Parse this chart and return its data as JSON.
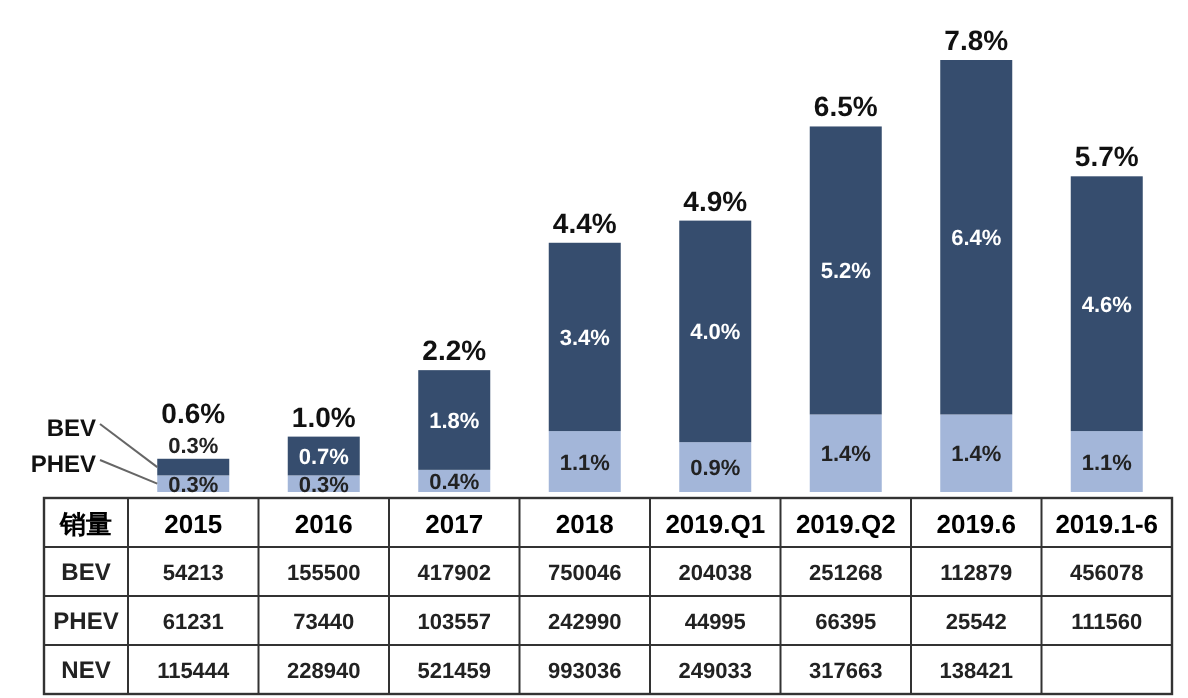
{
  "chart_data": {
    "type": "bar",
    "stacked": true,
    "categories": [
      "2015",
      "2016",
      "2017",
      "2018",
      "2019.Q1",
      "2019.Q2",
      "2019.6",
      "2019.1-6"
    ],
    "series": [
      {
        "name": "PHEV",
        "color": "#a3b6d9",
        "values": [
          0.3,
          0.3,
          0.4,
          1.1,
          0.9,
          1.4,
          1.4,
          1.1
        ],
        "value_labels": [
          "0.3%",
          "0.3%",
          "0.4%",
          "1.1%",
          "0.9%",
          "1.4%",
          "1.4%",
          "1.1%"
        ]
      },
      {
        "name": "BEV",
        "color": "#364d6e",
        "values": [
          0.3,
          0.7,
          1.8,
          3.4,
          4.0,
          5.2,
          6.4,
          4.6
        ],
        "value_labels": [
          "0.3%",
          "0.7%",
          "1.8%",
          "3.4%",
          "4.0%",
          "5.2%",
          "6.4%",
          "4.6%"
        ]
      }
    ],
    "totals": [
      "0.6%",
      "1.0%",
      "2.2%",
      "4.4%",
      "4.9%",
      "6.5%",
      "7.8%",
      "5.7%"
    ],
    "annotations": [
      "销量",
      "BEV",
      "54213",
      "155500",
      "417902",
      "750046",
      "204038",
      "251268",
      "112879",
      "456078",
      "PHEV",
      "61231",
      "73440",
      "103557",
      "242990",
      "44995",
      "66395",
      "25542",
      "111560",
      "NEV",
      "115444",
      "228940",
      "521459",
      "993036",
      "249033",
      "317663",
      "138421"
    ]
  }
}
